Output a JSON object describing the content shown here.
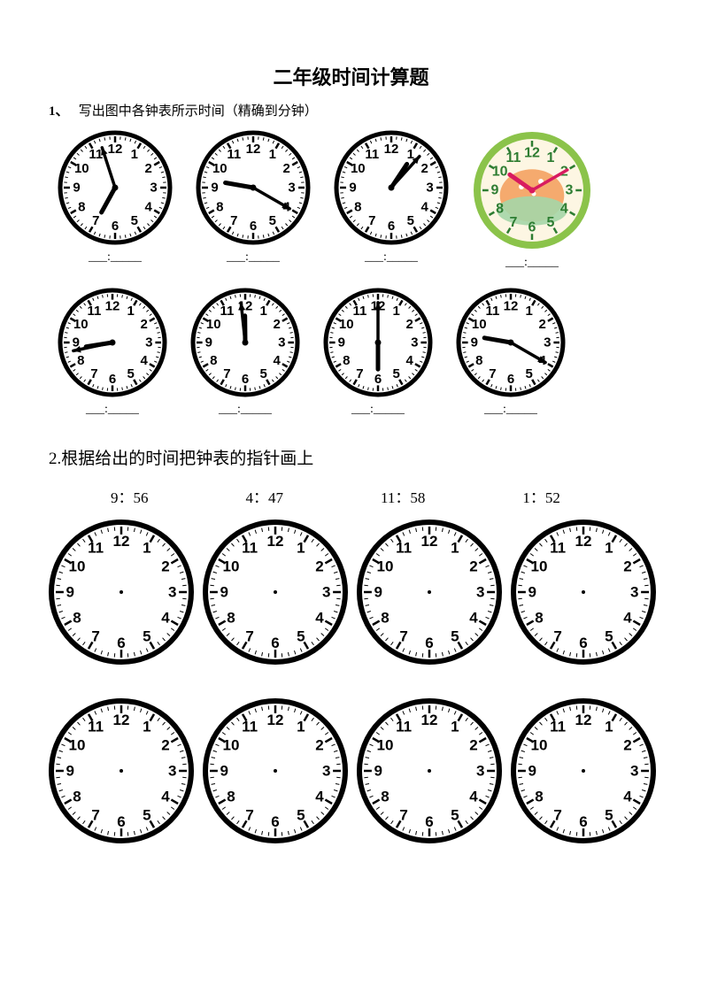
{
  "title": "二年级时间计算题",
  "q1": {
    "number": "1、",
    "text": "写出图中各钟表所示时间（精确到分钟）",
    "blank": "___:_____",
    "blank_alt": "___：_____",
    "clocks_row1": [
      {
        "hour": 6.96,
        "minute": 57,
        "radius": 63,
        "style": "bw"
      },
      {
        "hour": 9.33,
        "minute": 20,
        "radius": 63,
        "style": "bw"
      },
      {
        "hour": 1.12,
        "minute": 7,
        "radius": 63,
        "style": "bw"
      },
      {
        "hour": 10.17,
        "minute": 10,
        "radius": 66,
        "style": "color"
      }
    ],
    "clocks_row2": [
      {
        "hour": 8.7,
        "minute": 43,
        "radius": 60,
        "style": "bw"
      },
      {
        "hour": 11.98,
        "minute": 59,
        "radius": 60,
        "style": "bw"
      },
      {
        "hour": 6.0,
        "minute": 0,
        "radius": 60,
        "style": "bw"
      },
      {
        "hour": 9.33,
        "minute": 20,
        "radius": 60,
        "style": "bw"
      }
    ]
  },
  "q2": {
    "text": "2.根据给出的时间把钟表的指针画上",
    "times": [
      "9：56",
      "4：47",
      "11：58",
      "1：52"
    ],
    "blank_clock_radius": 80,
    "row1_count": 4,
    "row2_count": 4
  },
  "style": {
    "bw": {
      "face": "#ffffff",
      "rim": "#000000",
      "rim_w": 5,
      "tick": "#000000",
      "num": "#000000",
      "num_font": "bold 15px Arial",
      "hand": "#000000"
    },
    "color": {
      "face": "#fdf6e3",
      "rim": "#8bc34a",
      "rim_w": 8,
      "tick": "#2e7d32",
      "num": "#2e7d32",
      "num_font": "bold 16px Arial",
      "hand": "#d81b60",
      "inner": "#a5d6a7"
    },
    "blank": {
      "face": "#ffffff",
      "rim": "#000000",
      "rim_w": 6,
      "tick": "#000000",
      "num": "#000000",
      "num_font": "bold 17px Arial"
    }
  }
}
